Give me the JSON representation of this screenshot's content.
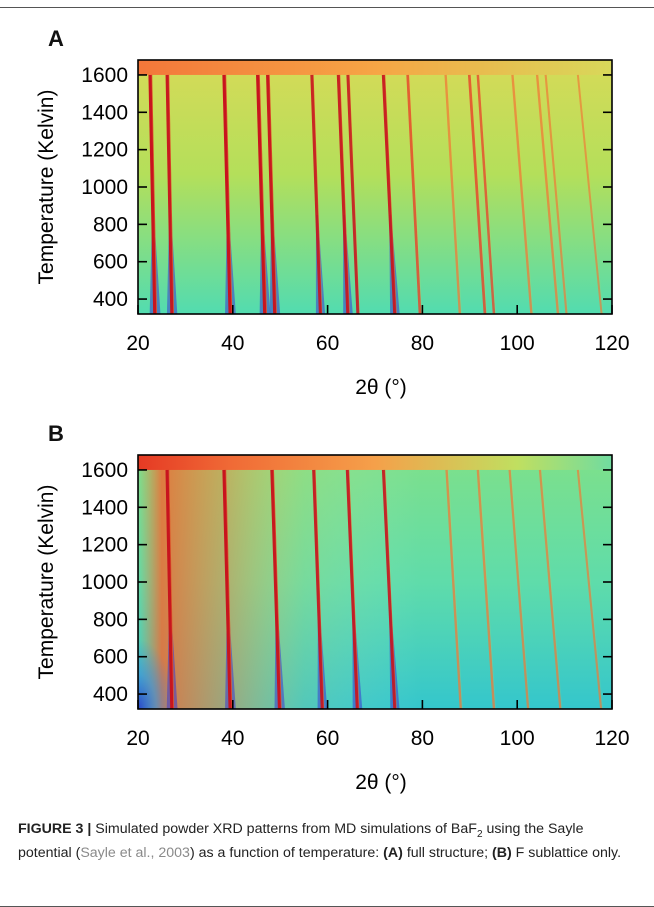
{
  "panels": [
    {
      "label": "A",
      "chart_data": {
        "type": "heatmap",
        "xlabel": "2θ (°)",
        "ylabel": "Temperature (Kelvin)",
        "xlim": [
          20,
          120
        ],
        "ylim": [
          320,
          1680
        ],
        "xticks": [
          20,
          40,
          60,
          80,
          100,
          120
        ],
        "yticks": [
          400,
          600,
          800,
          1000,
          1200,
          1400,
          1600
        ],
        "melt_temperature": 1600,
        "colormap": "turbo",
        "peak_lines": [
          {
            "x_low": 23.6,
            "x_high": 22.6,
            "strength": 1.0
          },
          {
            "x_low": 27.2,
            "x_high": 26.2,
            "strength": 0.95
          },
          {
            "x_low": 39.5,
            "x_high": 38.2,
            "strength": 1.0
          },
          {
            "x_low": 46.8,
            "x_high": 45.3,
            "strength": 1.0
          },
          {
            "x_low": 48.9,
            "x_high": 47.4,
            "strength": 0.95
          },
          {
            "x_low": 58.5,
            "x_high": 56.7,
            "strength": 0.8
          },
          {
            "x_low": 64.3,
            "x_high": 62.3,
            "strength": 0.85
          },
          {
            "x_low": 66.4,
            "x_high": 64.3,
            "strength": 0.75
          },
          {
            "x_low": 74.2,
            "x_high": 71.8,
            "strength": 0.85
          },
          {
            "x_low": 79.5,
            "x_high": 76.9,
            "strength": 0.6
          },
          {
            "x_low": 87.9,
            "x_high": 84.9,
            "strength": 0.45
          },
          {
            "x_low": 93.2,
            "x_high": 89.9,
            "strength": 0.6
          },
          {
            "x_low": 95.1,
            "x_high": 91.7,
            "strength": 0.5
          },
          {
            "x_low": 103.0,
            "x_high": 99.0,
            "strength": 0.45
          },
          {
            "x_low": 108.6,
            "x_high": 104.2,
            "strength": 0.45
          },
          {
            "x_low": 110.4,
            "x_high": 106.0,
            "strength": 0.35
          },
          {
            "x_low": 117.8,
            "x_high": 112.8,
            "strength": 0.3
          }
        ]
      }
    },
    {
      "label": "B",
      "chart_data": {
        "type": "heatmap",
        "xlabel": "2θ (°)",
        "ylabel": "Temperature (Kelvin)",
        "xlim": [
          20,
          120
        ],
        "ylim": [
          320,
          1680
        ],
        "xticks": [
          20,
          40,
          60,
          80,
          100,
          120
        ],
        "yticks": [
          400,
          600,
          800,
          1000,
          1200,
          1400,
          1600
        ],
        "melt_temperature": 1600,
        "colormap": "turbo",
        "peak_lines": [
          {
            "x_low": 27.2,
            "x_high": 26.2,
            "strength": 1.0
          },
          {
            "x_low": 39.5,
            "x_high": 38.2,
            "strength": 1.0
          },
          {
            "x_low": 49.9,
            "x_high": 48.3,
            "strength": 0.95
          },
          {
            "x_low": 58.9,
            "x_high": 57.1,
            "strength": 0.85
          },
          {
            "x_low": 66.3,
            "x_high": 64.2,
            "strength": 0.85
          },
          {
            "x_low": 74.2,
            "x_high": 71.8,
            "strength": 0.8
          },
          {
            "x_low": 88.1,
            "x_high": 85.1,
            "strength": 0.45
          },
          {
            "x_low": 95.1,
            "x_high": 91.7,
            "strength": 0.45
          },
          {
            "x_low": 102.3,
            "x_high": 98.4,
            "strength": 0.4
          },
          {
            "x_low": 109.1,
            "x_high": 104.8,
            "strength": 0.4
          },
          {
            "x_low": 117.7,
            "x_high": 112.8,
            "strength": 0.35
          }
        ]
      }
    }
  ],
  "caption": {
    "figure_label": "FIGURE 3 |",
    "text1": " Simulated powder XRD patterns from MD simulations of ",
    "compound_base": "BaF",
    "compound_sub": "2",
    "text2": " using the Sayle potential (",
    "citation": "Sayle et al., 2003",
    "text3": ") as a function of temperature: ",
    "part_a_label": "(A)",
    "part_a_text": " full structure; ",
    "part_b_label": "(B)",
    "part_b_text": " F sublattice only."
  },
  "colors": {
    "background_green": "#b8e05a",
    "low_cyan": "#3fd6c4",
    "melt_orange": "#f3773a",
    "peak_red": "#c8141e",
    "peak_blue": "#3a3ad0"
  }
}
